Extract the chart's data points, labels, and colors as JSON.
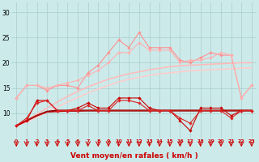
{
  "x": [
    0,
    1,
    2,
    3,
    4,
    5,
    6,
    7,
    8,
    9,
    10,
    11,
    12,
    13,
    14,
    15,
    16,
    17,
    18,
    19,
    20,
    21,
    22,
    23
  ],
  "series": [
    {
      "name": "light_jagged1",
      "color": "#FF9090",
      "lw": 0.8,
      "marker": "D",
      "markersize": 1.8,
      "values": [
        13,
        15.5,
        15.5,
        14.5,
        15.5,
        15.5,
        15,
        18,
        19.5,
        22,
        24.5,
        23,
        26,
        23,
        23,
        23,
        20.5,
        20,
        21,
        22,
        21.5,
        21.5,
        13,
        15.5
      ]
    },
    {
      "name": "light_jagged2",
      "color": "#FFB0B0",
      "lw": 0.8,
      "marker": "D",
      "markersize": 1.8,
      "values": [
        13,
        15.5,
        15.5,
        15,
        15.5,
        16,
        16.5,
        17.5,
        18.5,
        20,
        22,
        22,
        24,
        22.5,
        22.5,
        22.5,
        20,
        20.5,
        20.5,
        21,
        22,
        21.5,
        13,
        15.5
      ]
    },
    {
      "name": "light_smooth1",
      "color": "#FFBBBB",
      "lw": 1.2,
      "marker": null,
      "values": [
        7.5,
        8.5,
        9.8,
        11,
        12.2,
        13.3,
        14.3,
        15.2,
        16.0,
        16.7,
        17.3,
        17.8,
        18.2,
        18.6,
        18.9,
        19.2,
        19.4,
        19.5,
        19.6,
        19.7,
        19.8,
        19.9,
        20.0,
        20.0
      ]
    },
    {
      "name": "light_smooth2",
      "color": "#FFCCCC",
      "lw": 1.2,
      "marker": null,
      "values": [
        7.5,
        8.2,
        9.2,
        10.2,
        11.2,
        12.2,
        13.1,
        14.0,
        14.8,
        15.5,
        16.2,
        16.7,
        17.1,
        17.5,
        17.8,
        18.0,
        18.2,
        18.4,
        18.5,
        18.6,
        18.7,
        18.8,
        18.9,
        19.0
      ]
    },
    {
      "name": "dark_jagged1",
      "color": "#CC0000",
      "lw": 0.8,
      "marker": "D",
      "markersize": 1.8,
      "values": [
        7.5,
        8.5,
        12.5,
        12.5,
        10.5,
        10.5,
        11,
        12,
        11,
        11,
        13,
        13,
        13,
        11,
        10.5,
        10.5,
        8.5,
        6.5,
        11,
        11,
        11,
        9.5,
        10.5,
        10.5
      ]
    },
    {
      "name": "dark_jagged2",
      "color": "#DD2222",
      "lw": 0.8,
      "marker": "D",
      "markersize": 1.8,
      "values": [
        7.5,
        9,
        12,
        12.5,
        10.5,
        10.5,
        10.5,
        11.5,
        10.5,
        10.5,
        12.5,
        12.5,
        12,
        10.5,
        10.5,
        10.5,
        9,
        8,
        10.5,
        10.5,
        10.5,
        9,
        10.5,
        10.5
      ]
    },
    {
      "name": "dark_smooth1",
      "color": "#880000",
      "lw": 1.5,
      "marker": null,
      "values": [
        7.5,
        8.5,
        9.5,
        10.3,
        10.5,
        10.5,
        10.5,
        10.5,
        10.5,
        10.5,
        10.5,
        10.5,
        10.5,
        10.5,
        10.5,
        10.5,
        10.5,
        10.5,
        10.5,
        10.5,
        10.5,
        10.5,
        10.5,
        10.5
      ]
    },
    {
      "name": "dark_smooth2",
      "color": "#BB1111",
      "lw": 1.0,
      "marker": null,
      "values": [
        7.5,
        8.5,
        9.5,
        10.2,
        10.3,
        10.4,
        10.4,
        10.5,
        10.5,
        10.5,
        10.5,
        10.5,
        10.5,
        10.5,
        10.5,
        10.5,
        10.5,
        10.5,
        10.5,
        10.5,
        10.5,
        10.5,
        10.5,
        10.5
      ]
    }
  ],
  "xlabel": "Vent moyen/en rafales ( km/h )",
  "xlim": [
    -0.5,
    23.5
  ],
  "ylim": [
    5,
    32
  ],
  "yticks": [
    10,
    15,
    20,
    25,
    30
  ],
  "ytick_labels": [
    "10",
    "15",
    "20",
    "25",
    "30"
  ],
  "xticks": [
    0,
    1,
    2,
    3,
    4,
    5,
    6,
    7,
    8,
    9,
    10,
    11,
    12,
    13,
    14,
    15,
    16,
    17,
    18,
    19,
    20,
    21,
    22,
    23
  ],
  "bg_color": "#CCEAEA",
  "grid_color": "#AACCCC",
  "label_color": "#CC0000",
  "arrow_color": "#CC0000"
}
